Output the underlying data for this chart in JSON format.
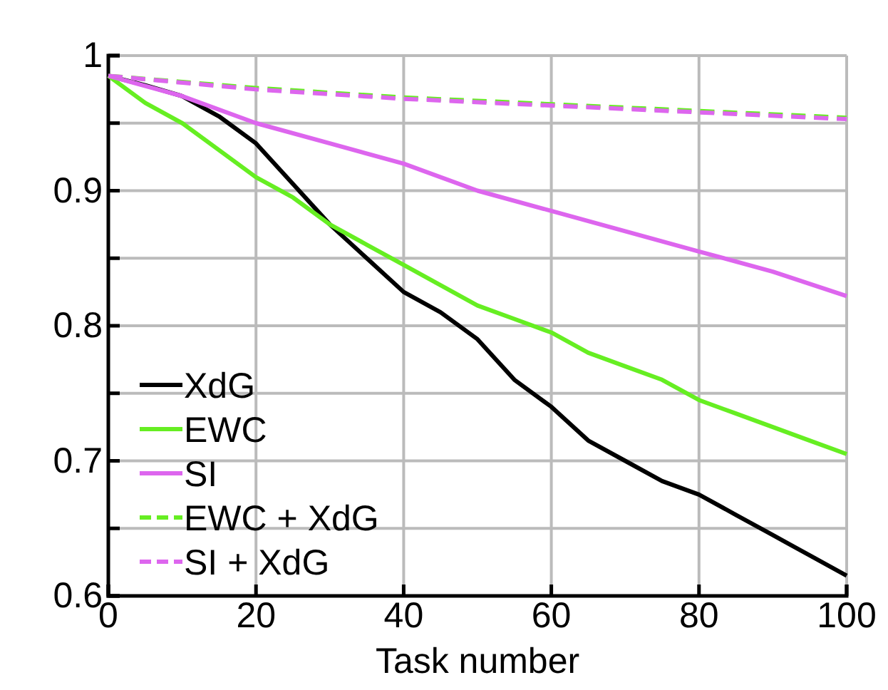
{
  "chart_data": {
    "type": "line",
    "xlabel": "Task number",
    "xlim": [
      0,
      100
    ],
    "xticks": [
      0,
      20,
      40,
      60,
      80,
      100
    ],
    "ylim": [
      0.6,
      1
    ],
    "yticks": [
      0.6,
      {
        "value": 0.65,
        "label": null
      },
      0.7,
      {
        "value": 0.75,
        "label": null
      },
      0.8,
      {
        "value": 0.85,
        "label": null
      },
      0.9,
      {
        "value": 0.95,
        "label": null
      },
      1
    ],
    "grid": true,
    "legend": "bottom left",
    "marker": "none",
    "series": [
      {
        "name": "XdG",
        "color": "#000000",
        "line_style": "solid",
        "x": [
          0,
          5,
          10,
          15,
          20,
          25,
          30,
          35,
          40,
          45,
          50,
          55,
          60,
          65,
          70,
          75,
          80,
          85,
          90,
          95,
          100
        ],
        "values": [
          0.985,
          0.978,
          0.97,
          0.955,
          0.935,
          0.905,
          0.875,
          0.85,
          0.825,
          0.81,
          0.79,
          0.76,
          0.74,
          0.715,
          0.7,
          0.685,
          0.675,
          0.66,
          0.645,
          0.63,
          0.615
        ]
      },
      {
        "name": "EWC",
        "color": "#66ee22",
        "line_style": "solid",
        "x": [
          0,
          5,
          10,
          15,
          20,
          25,
          30,
          35,
          40,
          45,
          50,
          55,
          60,
          65,
          70,
          75,
          80,
          85,
          90,
          95,
          100
        ],
        "values": [
          0.985,
          0.965,
          0.95,
          0.93,
          0.91,
          0.895,
          0.875,
          0.86,
          0.845,
          0.83,
          0.815,
          0.805,
          0.795,
          0.78,
          0.77,
          0.76,
          0.745,
          0.735,
          0.725,
          0.715,
          0.705
        ]
      },
      {
        "name": "SI",
        "color": "#dd66ee",
        "line_style": "solid",
        "x": [
          0,
          10,
          20,
          30,
          40,
          50,
          60,
          70,
          80,
          90,
          100
        ],
        "values": [
          0.985,
          0.97,
          0.95,
          0.935,
          0.92,
          0.9,
          0.885,
          0.87,
          0.855,
          0.84,
          0.822
        ]
      },
      {
        "name": "EWC + XdG",
        "color": "#66ee22",
        "line_style": "dashed",
        "x": [
          0,
          20,
          40,
          60,
          80,
          100
        ],
        "values": [
          0.985,
          0.976,
          0.969,
          0.964,
          0.959,
          0.954
        ]
      },
      {
        "name": "SI + XdG",
        "color": "#dd66ee",
        "line_style": "dashed",
        "x": [
          0,
          20,
          40,
          60,
          80,
          100
        ],
        "values": [
          0.985,
          0.975,
          0.968,
          0.963,
          0.958,
          0.953
        ]
      }
    ]
  }
}
